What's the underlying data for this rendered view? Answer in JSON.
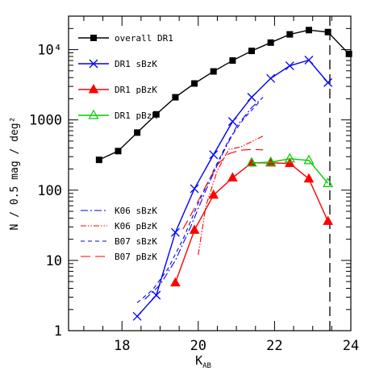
{
  "chart_data": {
    "type": "line",
    "xlabel": "K",
    "xlabel_sub": "AB",
    "ylabel": "N / 0.5 mag / deg²",
    "xlim": [
      16.6,
      24.0
    ],
    "ylim": [
      1,
      30000
    ],
    "y_scale": "log",
    "x_ticks": [
      18,
      20,
      22,
      24
    ],
    "y_ticks": [
      {
        "value": 1,
        "label": "1"
      },
      {
        "value": 10,
        "label": "10"
      },
      {
        "value": 100,
        "label": "100"
      },
      {
        "value": 1000,
        "label": "1000"
      },
      {
        "value": 10000,
        "label": "10⁴"
      }
    ],
    "legend_position": "top-left",
    "vertical_line": {
      "x": 23.45,
      "style": "long-dash"
    },
    "series": [
      {
        "name": "overall DR1",
        "color": "#000000",
        "marker": "filled-square",
        "style": "solid",
        "x": [
          17.4,
          17.9,
          18.4,
          18.9,
          19.4,
          19.9,
          20.4,
          20.9,
          21.4,
          21.9,
          22.4,
          22.9,
          23.4,
          23.95
        ],
        "y": [
          270,
          360,
          660,
          1200,
          2100,
          3300,
          4900,
          7000,
          9600,
          12600,
          16500,
          19000,
          17800,
          8700
        ]
      },
      {
        "name": "DR1 sBzK",
        "color": "#0000ff",
        "marker": "x-cross",
        "style": "solid",
        "x": [
          18.4,
          18.9,
          19.4,
          19.9,
          20.4,
          20.9,
          21.4,
          21.9,
          22.4,
          22.9,
          23.4
        ],
        "y": [
          1.6,
          3.2,
          25,
          105,
          320,
          950,
          2100,
          3900,
          5900,
          7100,
          3400
        ]
      },
      {
        "name": "DR1 pBzK",
        "color": "#ff0000",
        "marker": "filled-triangle",
        "style": "solid",
        "x": [
          19.4,
          19.9,
          20.4,
          20.9,
          21.4,
          21.9,
          22.4,
          22.9,
          23.4
        ],
        "y": [
          4.8,
          27,
          85,
          150,
          245,
          245,
          240,
          145,
          36
        ]
      },
      {
        "name": "DR1 pBzK",
        "color": "#00cc00",
        "marker": "open-triangle",
        "style": "solid",
        "x": [
          21.4,
          21.9,
          22.4,
          22.9,
          23.4
        ],
        "y": [
          245,
          250,
          280,
          265,
          125
        ]
      },
      {
        "name": "K06 sBzK",
        "color": "#0000ff",
        "marker": "none",
        "style": "dash-dot",
        "x": [
          18.6,
          19.0,
          19.4,
          19.8,
          20.2,
          20.6,
          21.0,
          21.4,
          21.7
        ],
        "y": [
          2.8,
          4.5,
          10,
          30,
          100,
          300,
          800,
          1500,
          2100
        ]
      },
      {
        "name": "K06 pBzK",
        "color": "#ff0000",
        "marker": "none",
        "style": "dash-dot-dot",
        "x": [
          20.0,
          20.2,
          20.5,
          20.8,
          21.1,
          21.4,
          21.7
        ],
        "y": [
          12,
          60,
          190,
          380,
          410,
          490,
          590
        ]
      },
      {
        "name": "B07 sBzK",
        "color": "#0000ff",
        "marker": "none",
        "style": "short-dash",
        "x": [
          18.4,
          18.8,
          19.2,
          19.6,
          20.0,
          20.4,
          20.8,
          21.2,
          21.6
        ],
        "y": [
          2.5,
          3.8,
          7.5,
          20,
          65,
          190,
          520,
          1050,
          1800
        ]
      },
      {
        "name": "B07 pBzK",
        "color": "#ff0000",
        "marker": "none",
        "style": "long-dash",
        "x": [
          19.6,
          19.9,
          20.2,
          20.5,
          20.8,
          21.1,
          21.4,
          21.7
        ],
        "y": [
          28,
          55,
          115,
          230,
          330,
          370,
          380,
          375
        ]
      }
    ]
  }
}
